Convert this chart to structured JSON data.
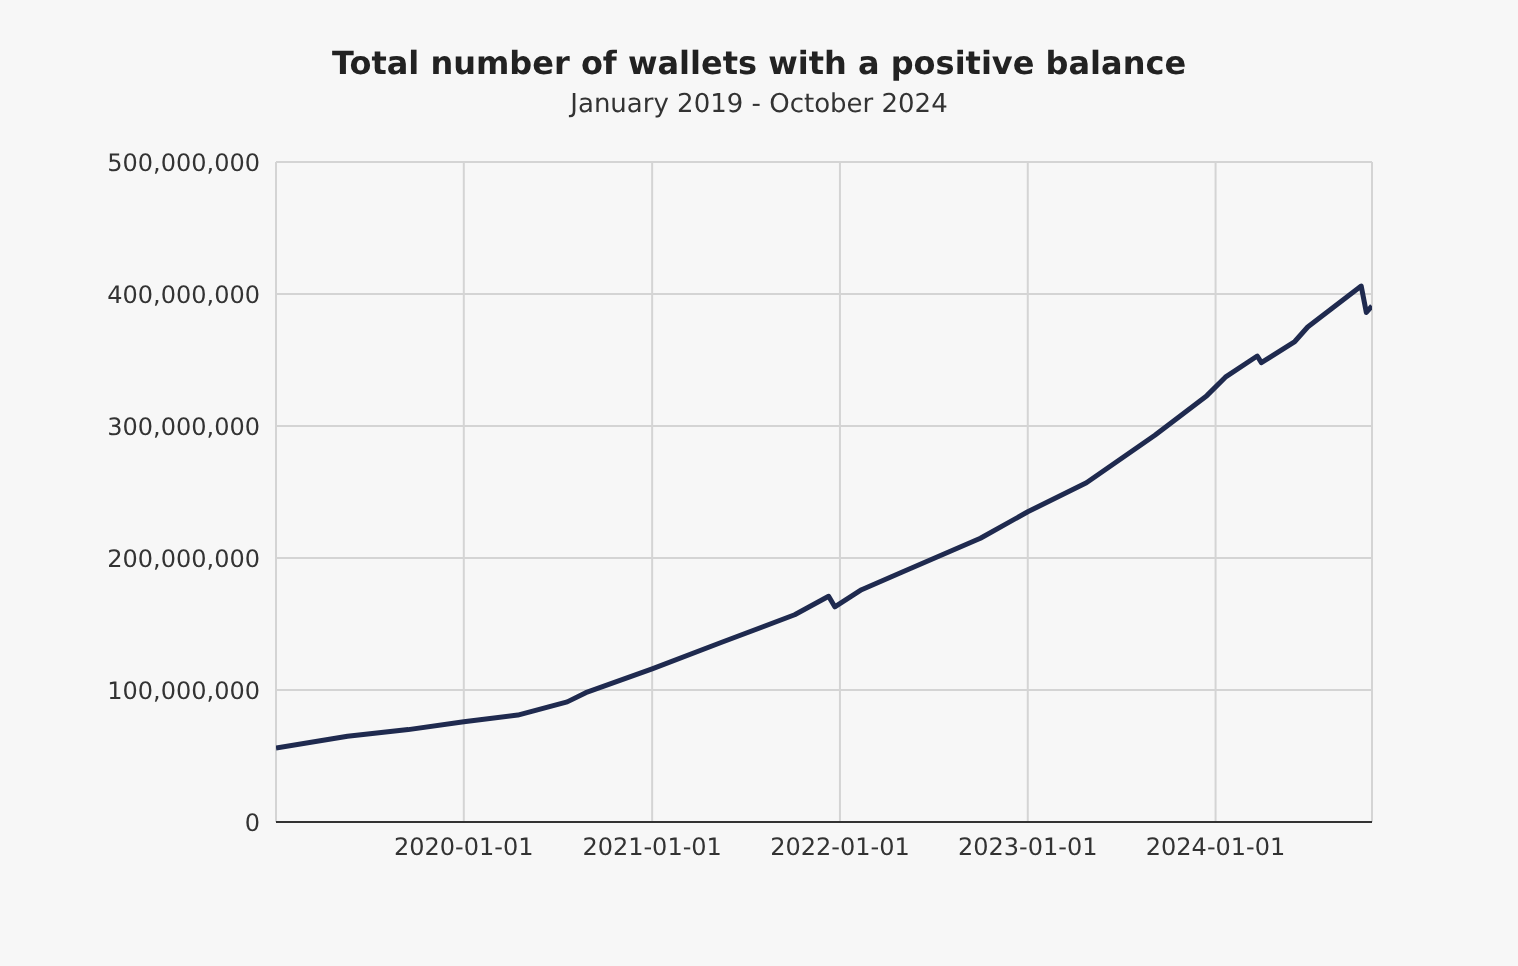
{
  "chart_data": {
    "type": "line",
    "title": "Total number of wallets with a positive balance",
    "subtitle": "January 2019 - October 2024",
    "x": [
      "2019-01-01",
      "2019-05-20",
      "2019-09-15",
      "2020-01-01",
      "2020-04-15",
      "2020-07-20",
      "2020-08-25",
      "2021-01-01",
      "2021-05-15",
      "2021-10-05",
      "2021-12-10",
      "2021-12-22",
      "2022-02-12",
      "2022-04-30",
      "2022-10-01",
      "2023-01-01",
      "2023-04-25",
      "2023-09-05",
      "2023-12-15",
      "2024-01-20",
      "2024-03-22",
      "2024-03-30",
      "2024-06-03",
      "2024-06-28",
      "2024-10-10",
      "2024-10-20",
      "2024-10-31"
    ],
    "series": [
      {
        "color": "#1f2a4f",
        "values": [
          56000000,
          65000000,
          70000000,
          76000000,
          81000000,
          91000000,
          98000000,
          116000000,
          136000000,
          157000000,
          171000000,
          163000000,
          176000000,
          189000000,
          215000000,
          235000000,
          257000000,
          293000000,
          323000000,
          337000000,
          353000000,
          348000000,
          364000000,
          375000000,
          406000000,
          386000000,
          391000000
        ]
      }
    ],
    "xlim": [
      "2019-01-01",
      "2024-10-31"
    ],
    "xticks": [
      "2020-01-01",
      "2021-01-01",
      "2022-01-01",
      "2023-01-01",
      "2024-01-01"
    ],
    "ylim": [
      0,
      500000000
    ],
    "yticks": [
      {
        "value": 0,
        "label": "0"
      },
      {
        "value": 100000000,
        "label": "100,000,000"
      },
      {
        "value": 200000000,
        "label": "200,000,000"
      },
      {
        "value": 300000000,
        "label": "300,000,000"
      },
      {
        "value": 400000000,
        "label": "400,000,000"
      },
      {
        "value": 500000000,
        "label": "500,000,000"
      }
    ],
    "grid": true,
    "legend": false,
    "marker": "none",
    "line_style": "solid"
  }
}
